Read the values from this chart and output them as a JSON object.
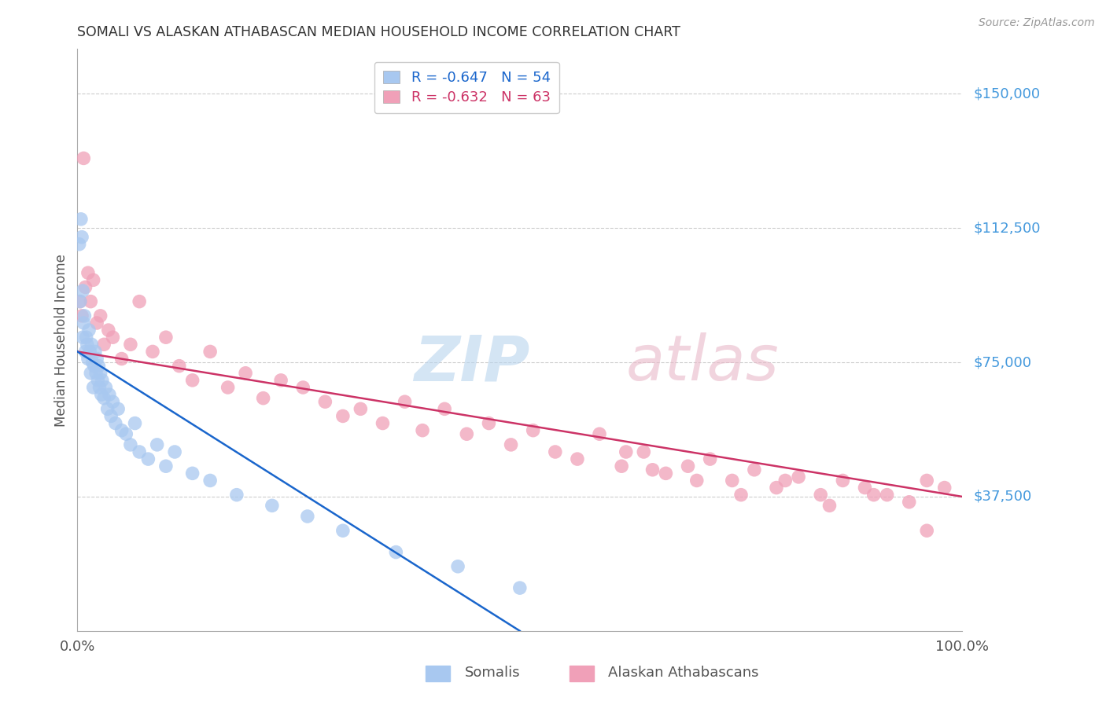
{
  "title": "SOMALI VS ALASKAN ATHABASCAN MEDIAN HOUSEHOLD INCOME CORRELATION CHART",
  "source": "Source: ZipAtlas.com",
  "ylabel": "Median Household Income",
  "ytick_labels": [
    "$150,000",
    "$112,500",
    "$75,000",
    "$37,500"
  ],
  "ytick_values": [
    150000,
    112500,
    75000,
    37500
  ],
  "ylim": [
    0,
    162500
  ],
  "xlim": [
    0,
    1.0
  ],
  "legend_line1": "R = -0.647   N = 54",
  "legend_line2": "R = -0.632   N = 63",
  "series1_label": "Somalis",
  "series2_label": "Alaskan Athabascans",
  "series1_color": "#a8c8f0",
  "series2_color": "#f0a0b8",
  "line1_color": "#1a66cc",
  "line2_color": "#cc3366",
  "background_color": "#ffffff",
  "grid_color": "#cccccc",
  "title_color": "#333333",
  "ytick_color": "#4499dd",
  "source_color": "#999999",
  "somali_x": [
    0.002,
    0.003,
    0.004,
    0.005,
    0.006,
    0.006,
    0.007,
    0.008,
    0.009,
    0.01,
    0.011,
    0.012,
    0.013,
    0.014,
    0.015,
    0.016,
    0.017,
    0.018,
    0.019,
    0.02,
    0.021,
    0.022,
    0.023,
    0.024,
    0.025,
    0.026,
    0.027,
    0.028,
    0.03,
    0.032,
    0.034,
    0.036,
    0.038,
    0.04,
    0.043,
    0.046,
    0.05,
    0.055,
    0.06,
    0.065,
    0.07,
    0.08,
    0.09,
    0.1,
    0.11,
    0.13,
    0.15,
    0.18,
    0.22,
    0.26,
    0.3,
    0.36,
    0.43,
    0.5
  ],
  "somali_y": [
    108000,
    92000,
    115000,
    110000,
    82000,
    95000,
    86000,
    88000,
    78000,
    82000,
    80000,
    76000,
    84000,
    78000,
    72000,
    80000,
    75000,
    68000,
    74000,
    78000,
    72000,
    76000,
    70000,
    74000,
    68000,
    72000,
    66000,
    70000,
    65000,
    68000,
    62000,
    66000,
    60000,
    64000,
    58000,
    62000,
    56000,
    55000,
    52000,
    58000,
    50000,
    48000,
    52000,
    46000,
    50000,
    44000,
    42000,
    38000,
    35000,
    32000,
    28000,
    22000,
    18000,
    12000
  ],
  "athabascan_x": [
    0.003,
    0.005,
    0.007,
    0.009,
    0.012,
    0.015,
    0.018,
    0.022,
    0.026,
    0.03,
    0.035,
    0.04,
    0.05,
    0.06,
    0.07,
    0.085,
    0.1,
    0.115,
    0.13,
    0.15,
    0.17,
    0.19,
    0.21,
    0.23,
    0.255,
    0.28,
    0.3,
    0.32,
    0.345,
    0.37,
    0.39,
    0.415,
    0.44,
    0.465,
    0.49,
    0.515,
    0.54,
    0.565,
    0.59,
    0.615,
    0.64,
    0.665,
    0.69,
    0.715,
    0.74,
    0.765,
    0.79,
    0.815,
    0.84,
    0.865,
    0.89,
    0.915,
    0.94,
    0.96,
    0.98,
    0.62,
    0.65,
    0.7,
    0.75,
    0.8,
    0.85,
    0.9,
    0.96
  ],
  "athabascan_y": [
    92000,
    88000,
    132000,
    96000,
    100000,
    92000,
    98000,
    86000,
    88000,
    80000,
    84000,
    82000,
    76000,
    80000,
    92000,
    78000,
    82000,
    74000,
    70000,
    78000,
    68000,
    72000,
    65000,
    70000,
    68000,
    64000,
    60000,
    62000,
    58000,
    64000,
    56000,
    62000,
    55000,
    58000,
    52000,
    56000,
    50000,
    48000,
    55000,
    46000,
    50000,
    44000,
    46000,
    48000,
    42000,
    45000,
    40000,
    43000,
    38000,
    42000,
    40000,
    38000,
    36000,
    42000,
    40000,
    50000,
    45000,
    42000,
    38000,
    42000,
    35000,
    38000,
    28000
  ],
  "somali_line_x": [
    0.0,
    0.5
  ],
  "somali_line_y": [
    78000,
    0
  ],
  "athabascan_line_x": [
    0.0,
    1.0
  ],
  "athabascan_line_y": [
    78000,
    37500
  ]
}
